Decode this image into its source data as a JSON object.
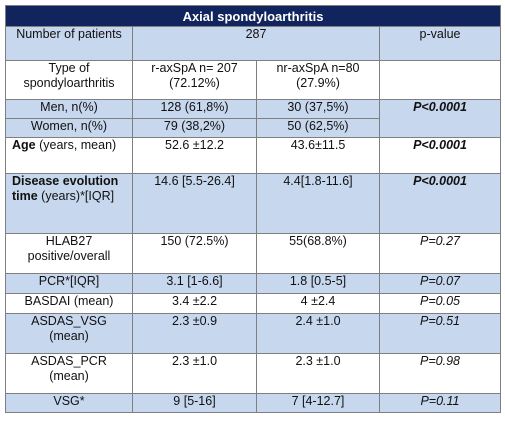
{
  "table": {
    "title": "Axial spondyloarthritis",
    "header": {
      "label": "Number of patients",
      "count": "287",
      "pvalue": "p-value"
    },
    "type_row": {
      "label": "Type of spondyloarthritis",
      "col1": "r-axSpA n= 207 (72.12%)",
      "col2": "nr-axSpA n=80 (27.9%)"
    },
    "rows": {
      "men": {
        "label": "Men, n(%)",
        "v1": "128 (61,8%)",
        "v2": "30 (37,5%)"
      },
      "women": {
        "label": "Women, n(%)",
        "v1": "79 (38,2%)",
        "v2": "50 (62,5%)"
      },
      "sex_p": "P<0.0001",
      "age": {
        "label_bold": "Age",
        "label_rest": " (years, mean)",
        "v1": "52.6 ±12.2",
        "v2": "43.6±11.5",
        "p": "P<0.0001"
      },
      "disease": {
        "label_bold": "Disease evolution time",
        "label_rest": " (years)*[IQR]",
        "v1": "14.6 [5.5-26.4]",
        "v2": "4.4[1.8-11.6]",
        "p": "P<0.0001"
      },
      "hlab27": {
        "label": "HLAB27 positive/overall",
        "v1": "150 (72.5%)",
        "v2": "55(68.8%)",
        "p": "P=0.27"
      },
      "pcr": {
        "label": "PCR*[IQR]",
        "v1": "3.1 [1-6.6]",
        "v2": "1.8 [0.5-5]",
        "p": "P=0.07"
      },
      "basdai": {
        "label": "BASDAI (mean)",
        "v1": "3.4 ±2.2",
        "v2": "4 ±2.4",
        "p": "P=0.05"
      },
      "asdas_vsg": {
        "label": "ASDAS_VSG (mean)",
        "v1": "2.3 ±0.9",
        "v2": "2.4 ±1.0",
        "p": "P=0.51"
      },
      "asdas_pcr": {
        "label": "ASDAS_PCR (mean)",
        "v1": "2.3 ±1.0",
        "v2": "2.3 ±1.0",
        "p": "P=0.98"
      },
      "vsg": {
        "label": "VSG*",
        "v1": "9 [5-16]",
        "v2": "7 [4-12.7]",
        "p": "P=0.11"
      }
    }
  }
}
